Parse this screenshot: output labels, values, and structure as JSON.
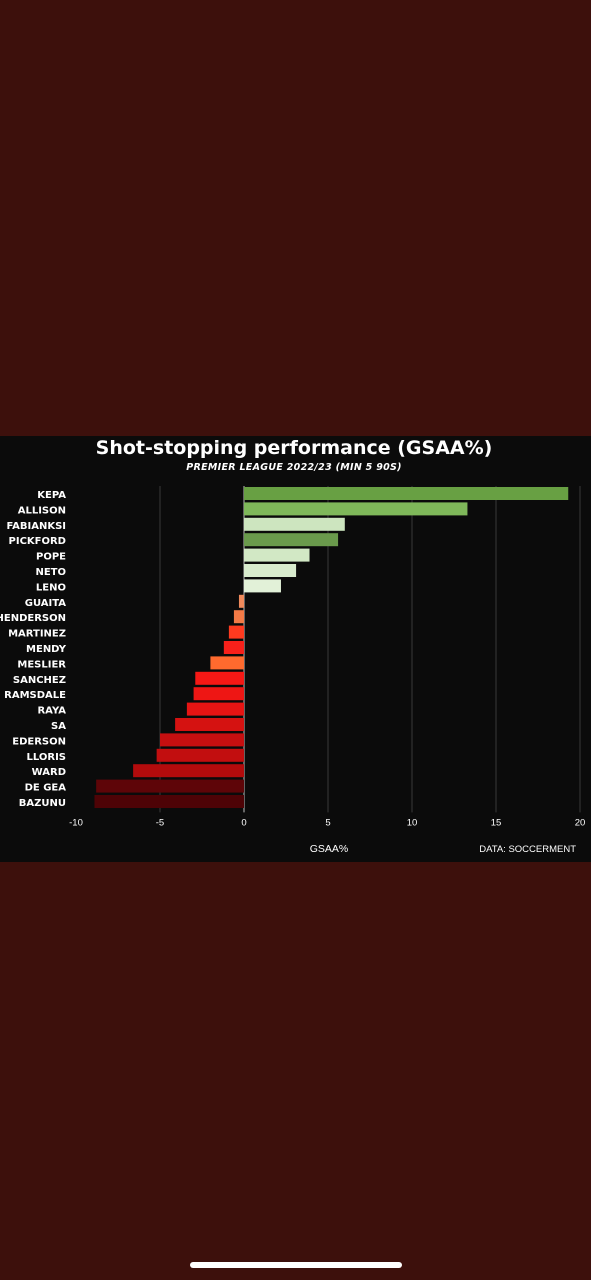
{
  "colors": {
    "page_background": "#3d100c",
    "chart_background": "#0b0b0b",
    "positive_light": "#dcefd2",
    "positive_dark": "#6fa84c",
    "negative_light": "#f47a46",
    "negative_dark": "#5a0508"
  },
  "chart_data": {
    "type": "bar",
    "orientation": "horizontal",
    "title": "Shot-stopping performance (GSAA%)",
    "subtitle": "PREMIER LEAGUE 2022/23 (MIN 5 90S)",
    "xlabel": "GSAA%",
    "ylabel": "",
    "source": "DATA: SOCCERMENT",
    "xlim": [
      -10,
      20
    ],
    "xticks": [
      -10,
      -5,
      0,
      5,
      10,
      15,
      20
    ],
    "grid": true,
    "categories": [
      "KEPA",
      "ALLISON",
      "FABIANKSI",
      "PICKFORD",
      "POPE",
      "NETO",
      "LENO",
      "GUAITA",
      "HENDERSON",
      "MARTINEZ",
      "MENDY",
      "MESLIER",
      "SANCHEZ",
      "RAMSDALE",
      "RAYA",
      "SA",
      "EDERSON",
      "LLORIS",
      "WARD",
      "DE GEA",
      "BAZUNU"
    ],
    "values": [
      19.3,
      13.3,
      6.0,
      5.6,
      3.9,
      3.1,
      2.2,
      -0.3,
      -0.6,
      -0.9,
      -1.2,
      -2.0,
      -2.9,
      -3.0,
      -3.4,
      -4.1,
      -5.0,
      -5.2,
      -6.6,
      -8.8,
      -8.9
    ],
    "bar_colors": [
      "#68a043",
      "#7fb85a",
      "#cde5bf",
      "#6a9a4c",
      "#d2e8c5",
      "#d8ebcd",
      "#e2f1d8",
      "#f08a5c",
      "#f47a46",
      "#ff3a1f",
      "#f7201a",
      "#ff6a2e",
      "#f61815",
      "#ee1614",
      "#e71413",
      "#d51211",
      "#c60f10",
      "#c20e0f",
      "#b30b0c",
      "#5e0508",
      "#4e0306"
    ]
  }
}
